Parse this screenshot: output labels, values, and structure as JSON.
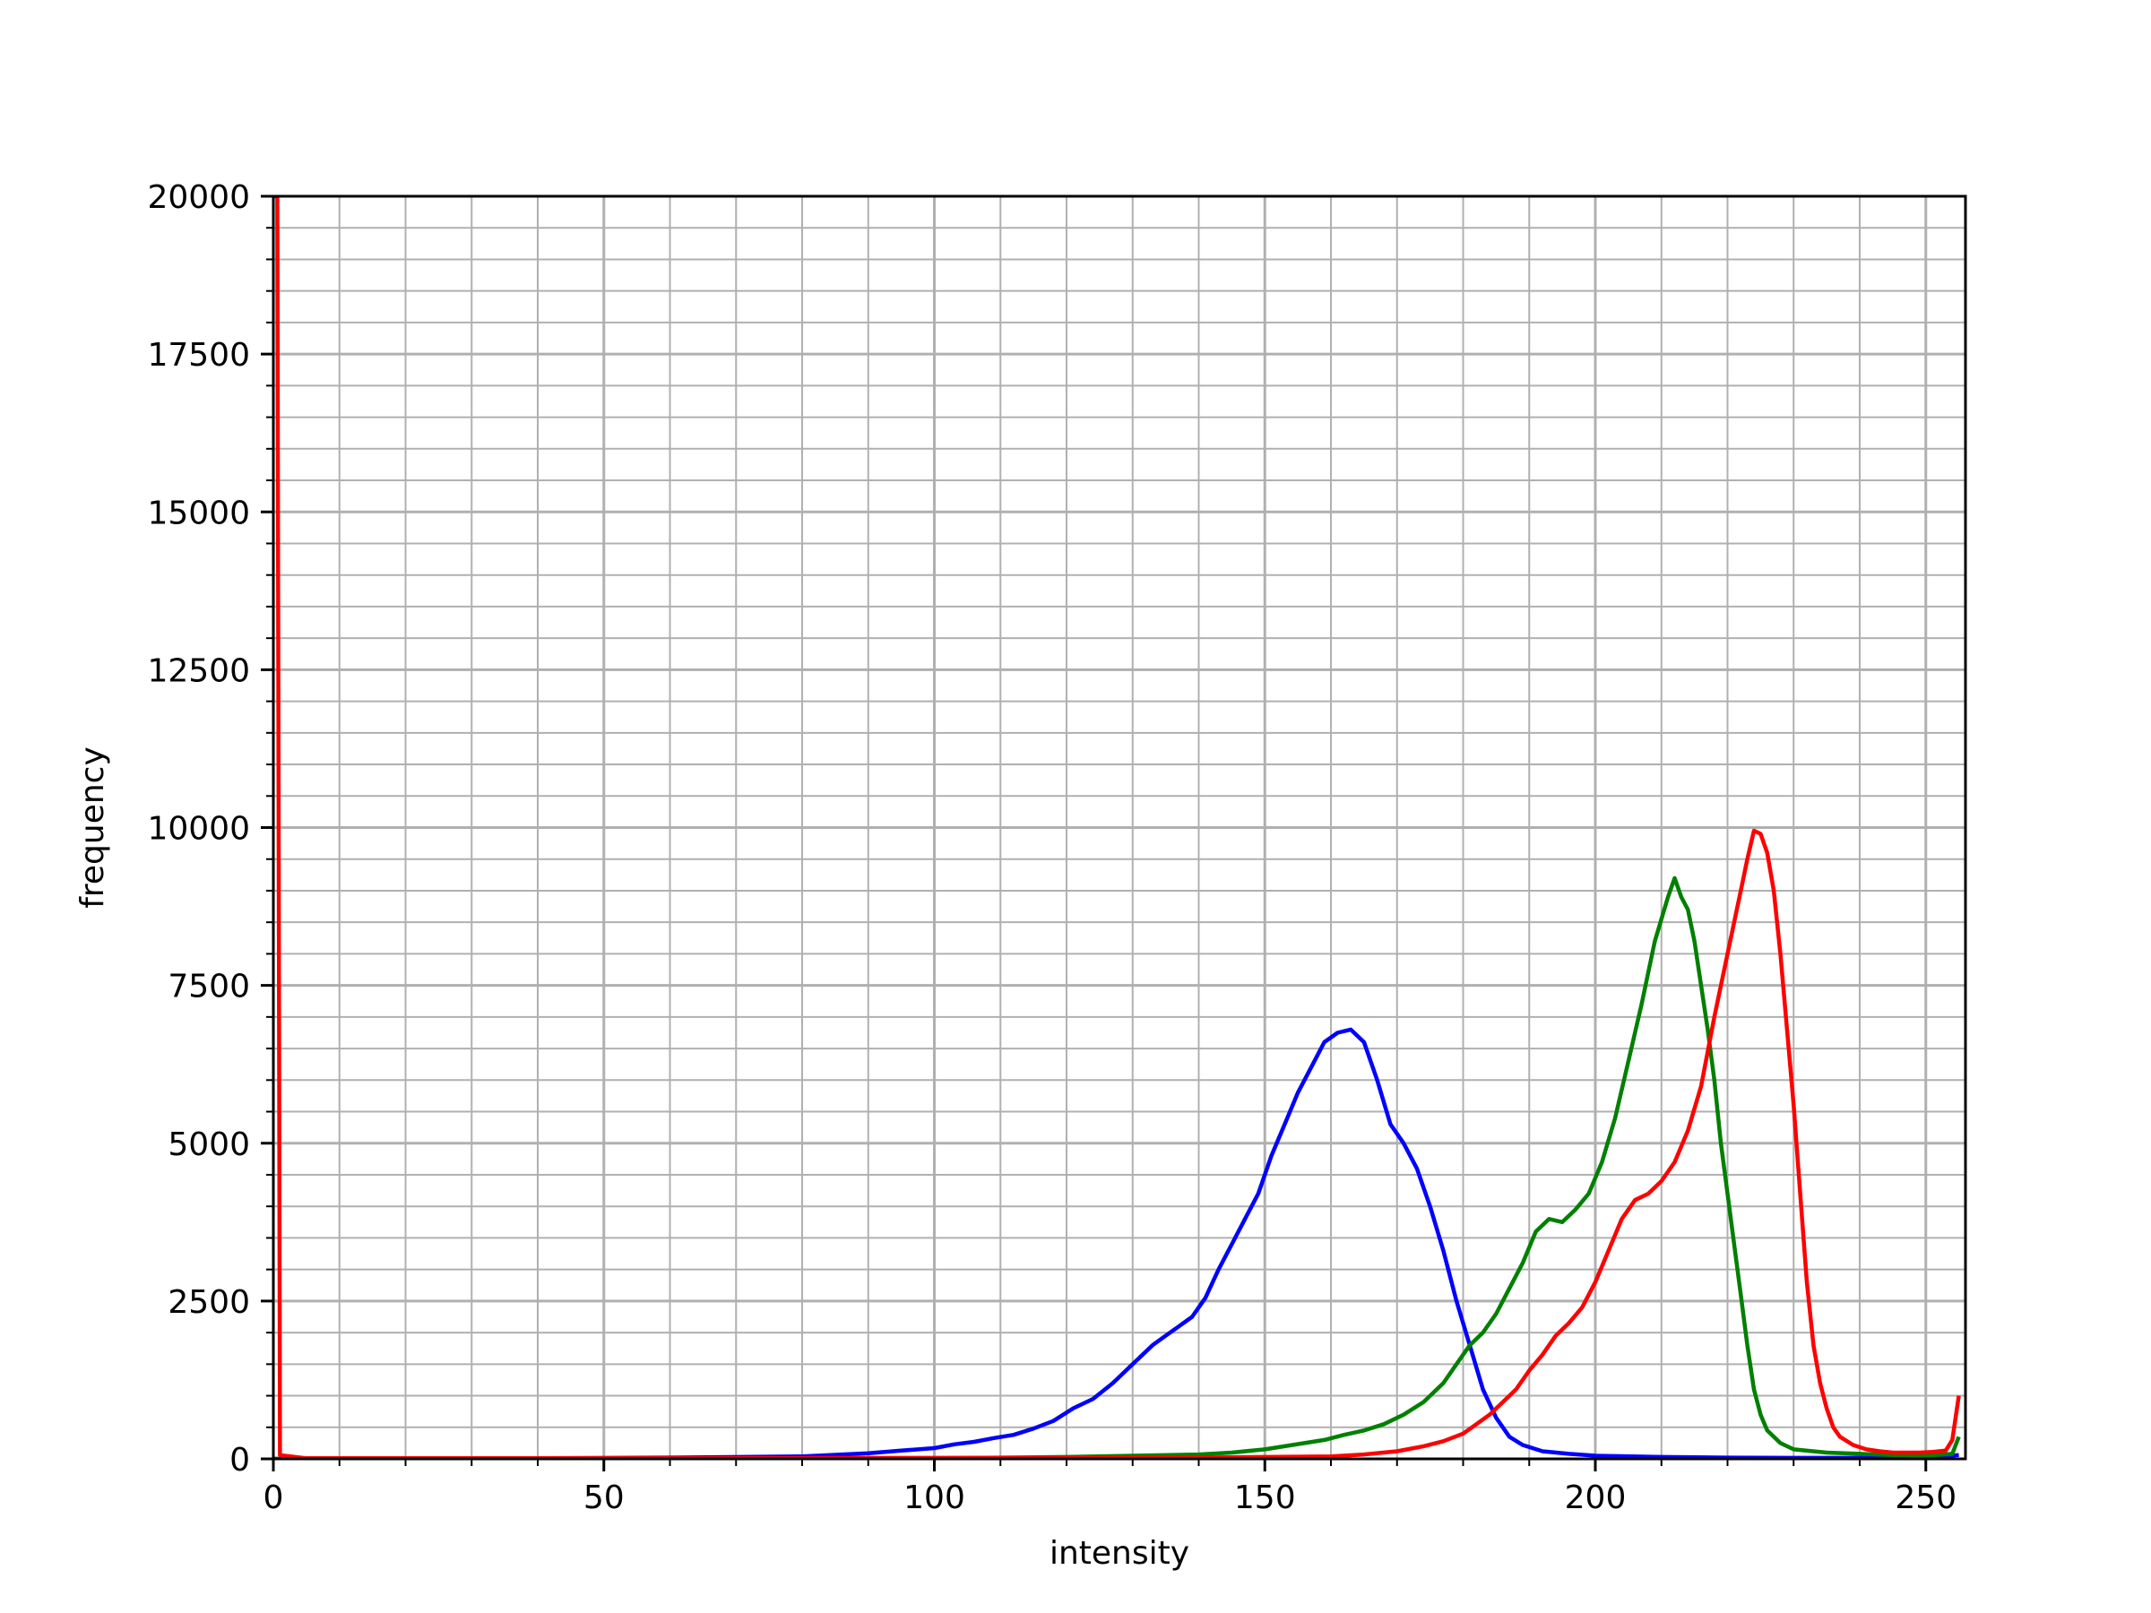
{
  "chart_data": {
    "type": "line",
    "title": "",
    "xlabel": "intensity",
    "ylabel": "frequency",
    "xlim": [
      0,
      256
    ],
    "ylim": [
      0,
      20000
    ],
    "x_ticks": [
      0,
      50,
      100,
      150,
      200,
      250
    ],
    "y_ticks": [
      0,
      2500,
      5000,
      7500,
      10000,
      12500,
      15000,
      17500,
      20000
    ],
    "x_minor_step": 10,
    "y_minor_step": 500,
    "grid": "major and minor",
    "legend": "none",
    "series": [
      {
        "color": "#0000ff",
        "points": [
          [
            0,
            0
          ],
          [
            40,
            10
          ],
          [
            60,
            20
          ],
          [
            80,
            40
          ],
          [
            90,
            90
          ],
          [
            95,
            130
          ],
          [
            100,
            170
          ],
          [
            103,
            230
          ],
          [
            106,
            270
          ],
          [
            109,
            330
          ],
          [
            112,
            380
          ],
          [
            115,
            480
          ],
          [
            118,
            600
          ],
          [
            121,
            800
          ],
          [
            124,
            950
          ],
          [
            127,
            1200
          ],
          [
            130,
            1500
          ],
          [
            133,
            1800
          ],
          [
            135,
            1950
          ],
          [
            137,
            2100
          ],
          [
            139,
            2250
          ],
          [
            141,
            2550
          ],
          [
            143,
            3000
          ],
          [
            145,
            3400
          ],
          [
            147,
            3800
          ],
          [
            149,
            4200
          ],
          [
            151,
            4800
          ],
          [
            153,
            5300
          ],
          [
            155,
            5800
          ],
          [
            157,
            6200
          ],
          [
            159,
            6600
          ],
          [
            161,
            6750
          ],
          [
            163,
            6800
          ],
          [
            165,
            6600
          ],
          [
            167,
            6000
          ],
          [
            169,
            5300
          ],
          [
            171,
            5000
          ],
          [
            173,
            4600
          ],
          [
            175,
            4000
          ],
          [
            177,
            3300
          ],
          [
            179,
            2500
          ],
          [
            181,
            1800
          ],
          [
            183,
            1100
          ],
          [
            185,
            650
          ],
          [
            187,
            350
          ],
          [
            189,
            220
          ],
          [
            192,
            120
          ],
          [
            196,
            80
          ],
          [
            200,
            50
          ],
          [
            210,
            30
          ],
          [
            220,
            20
          ],
          [
            230,
            15
          ],
          [
            240,
            15
          ],
          [
            250,
            20
          ],
          [
            255,
            60
          ]
        ]
      },
      {
        "color": "#008000",
        "points": [
          [
            0,
            0
          ],
          [
            60,
            5
          ],
          [
            100,
            10
          ],
          [
            110,
            20
          ],
          [
            120,
            30
          ],
          [
            130,
            50
          ],
          [
            140,
            70
          ],
          [
            145,
            100
          ],
          [
            150,
            150
          ],
          [
            153,
            200
          ],
          [
            156,
            250
          ],
          [
            159,
            300
          ],
          [
            162,
            380
          ],
          [
            165,
            450
          ],
          [
            168,
            550
          ],
          [
            171,
            700
          ],
          [
            174,
            900
          ],
          [
            177,
            1200
          ],
          [
            179,
            1500
          ],
          [
            181,
            1800
          ],
          [
            183,
            2000
          ],
          [
            185,
            2300
          ],
          [
            187,
            2700
          ],
          [
            189,
            3100
          ],
          [
            191,
            3600
          ],
          [
            193,
            3800
          ],
          [
            195,
            3750
          ],
          [
            197,
            3950
          ],
          [
            199,
            4200
          ],
          [
            201,
            4700
          ],
          [
            203,
            5400
          ],
          [
            205,
            6300
          ],
          [
            207,
            7200
          ],
          [
            209,
            8200
          ],
          [
            211,
            8900
          ],
          [
            212,
            9200
          ],
          [
            213,
            8900
          ],
          [
            214,
            8700
          ],
          [
            215,
            8200
          ],
          [
            216,
            7500
          ],
          [
            217,
            6800
          ],
          [
            218,
            6000
          ],
          [
            219,
            5000
          ],
          [
            220,
            4200
          ],
          [
            221,
            3400
          ],
          [
            222,
            2600
          ],
          [
            223,
            1800
          ],
          [
            224,
            1100
          ],
          [
            225,
            700
          ],
          [
            226,
            450
          ],
          [
            228,
            250
          ],
          [
            230,
            150
          ],
          [
            235,
            100
          ],
          [
            240,
            80
          ],
          [
            245,
            60
          ],
          [
            250,
            50
          ],
          [
            254,
            80
          ],
          [
            255,
            350
          ]
        ]
      },
      {
        "color": "#ff0000",
        "points": [
          [
            0,
            20000
          ],
          [
            0.6,
            20000
          ],
          [
            1,
            60
          ],
          [
            5,
            10
          ],
          [
            50,
            10
          ],
          [
            100,
            15
          ],
          [
            140,
            20
          ],
          [
            160,
            40
          ],
          [
            165,
            70
          ],
          [
            170,
            120
          ],
          [
            174,
            200
          ],
          [
            177,
            280
          ],
          [
            180,
            400
          ],
          [
            182,
            550
          ],
          [
            184,
            700
          ],
          [
            186,
            900
          ],
          [
            188,
            1100
          ],
          [
            190,
            1400
          ],
          [
            192,
            1650
          ],
          [
            194,
            1950
          ],
          [
            196,
            2150
          ],
          [
            198,
            2400
          ],
          [
            200,
            2800
          ],
          [
            202,
            3300
          ],
          [
            204,
            3800
          ],
          [
            206,
            4100
          ],
          [
            208,
            4200
          ],
          [
            210,
            4400
          ],
          [
            212,
            4700
          ],
          [
            214,
            5200
          ],
          [
            216,
            5900
          ],
          [
            218,
            7000
          ],
          [
            220,
            8000
          ],
          [
            221,
            8500
          ],
          [
            222,
            9000
          ],
          [
            223,
            9500
          ],
          [
            224,
            9950
          ],
          [
            225,
            9900
          ],
          [
            226,
            9600
          ],
          [
            227,
            9000
          ],
          [
            228,
            8000
          ],
          [
            229,
            6800
          ],
          [
            230,
            5600
          ],
          [
            231,
            4200
          ],
          [
            232,
            2800
          ],
          [
            233,
            1800
          ],
          [
            234,
            1200
          ],
          [
            235,
            800
          ],
          [
            236,
            500
          ],
          [
            237,
            350
          ],
          [
            239,
            220
          ],
          [
            241,
            150
          ],
          [
            243,
            120
          ],
          [
            245,
            100
          ],
          [
            247,
            100
          ],
          [
            249,
            100
          ],
          [
            251,
            110
          ],
          [
            253,
            130
          ],
          [
            254,
            300
          ],
          [
            255,
            1000
          ]
        ]
      }
    ]
  }
}
